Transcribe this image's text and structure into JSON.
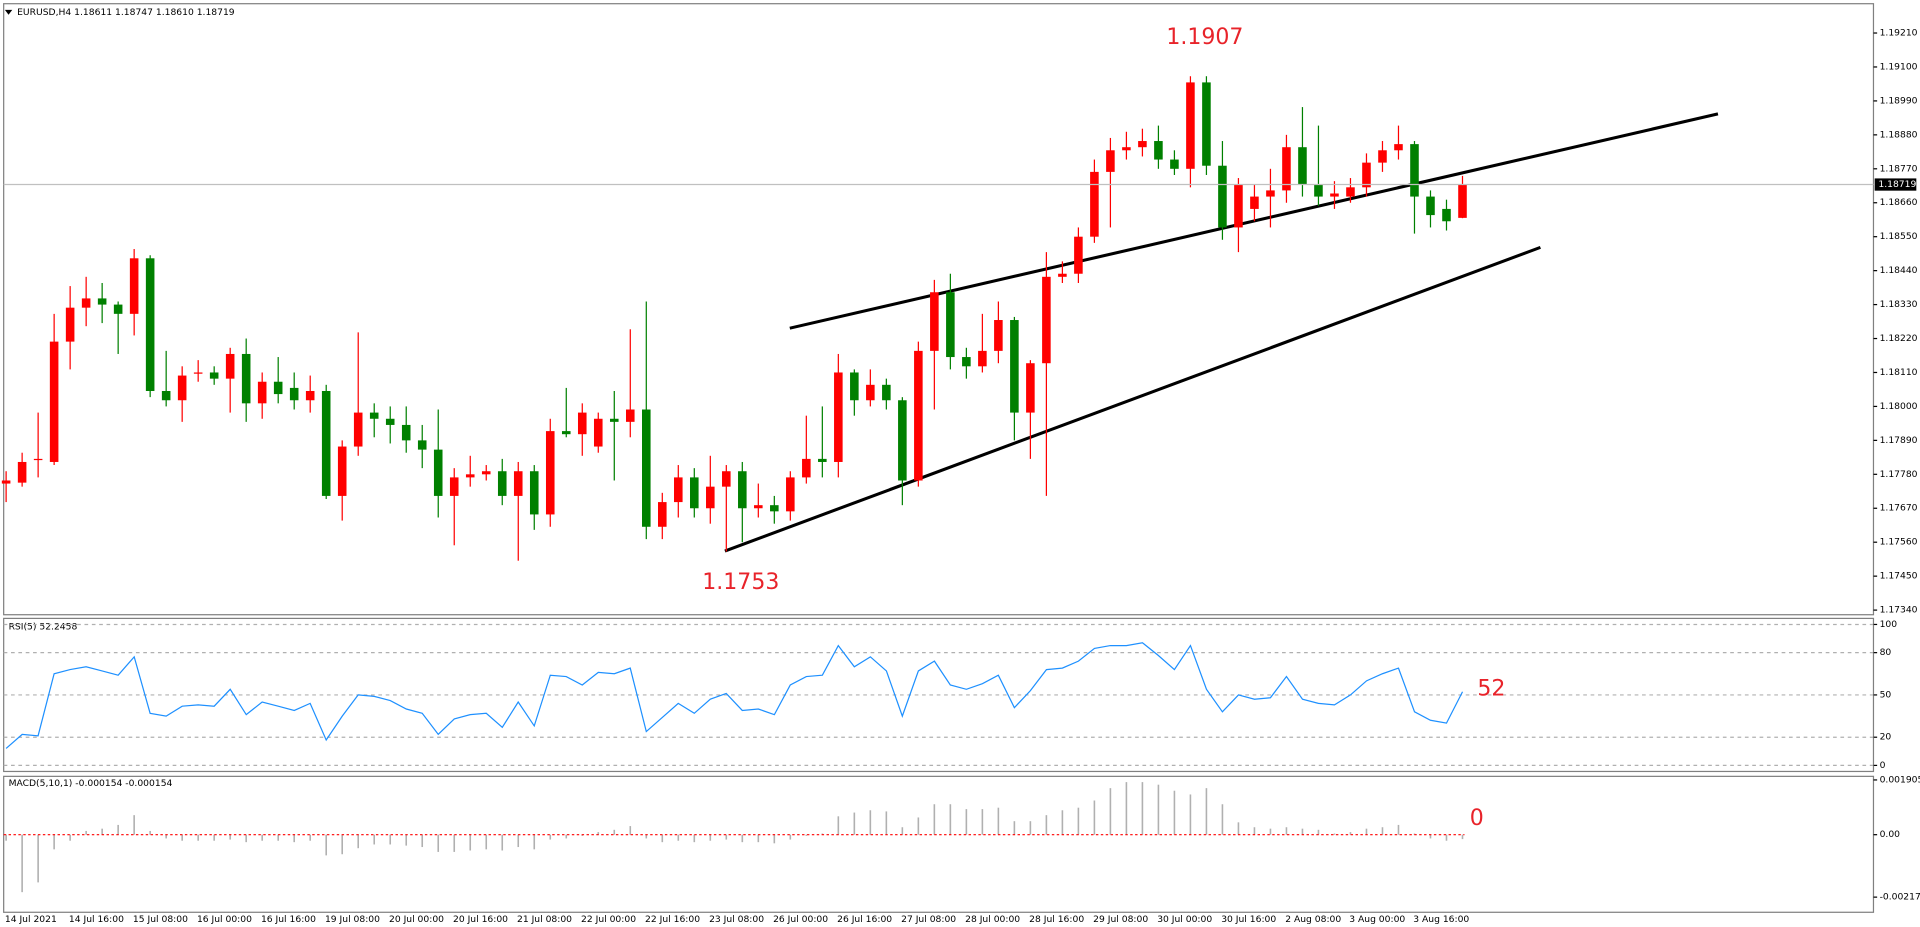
{
  "chart_data": [
    {
      "type": "candlestick",
      "title": "EURUSD,H4  1.18611 1.18747 1.18610 1.18719",
      "up_color": "#ff0000",
      "down_color": "#008000",
      "categories": [
        "14 Jul 2021",
        null,
        null,
        null,
        "14 Jul 16:00",
        null,
        null,
        null,
        "15 Jul 08:00",
        null,
        null,
        null,
        "16 Jul 00:00",
        null,
        null,
        null,
        "16 Jul 16:00",
        null,
        null,
        null,
        "19 Jul 08:00",
        null,
        null,
        null,
        "20 Jul 00:00",
        null,
        null,
        null,
        "20 Jul 16:00",
        null,
        null,
        null,
        "21 Jul 08:00",
        null,
        null,
        null,
        "22 Jul 00:00",
        null,
        null,
        null,
        "22 Jul 16:00",
        null,
        null,
        null,
        "23 Jul 08:00",
        null,
        null,
        null,
        "26 Jul 00:00",
        null,
        null,
        null,
        "26 Jul 16:00",
        null,
        null,
        null,
        "27 Jul 08:00",
        null,
        null,
        null,
        "28 Jul 00:00",
        null,
        null,
        null,
        "28 Jul 16:00",
        null,
        null,
        null,
        "29 Jul 08:00",
        null,
        null,
        null,
        "30 Jul 00:00",
        null,
        null,
        null,
        "30 Jul 16:00",
        null,
        null,
        null,
        "2 Aug 08:00",
        null,
        null,
        null,
        "3 Aug 00:00",
        null,
        null,
        null,
        "3 Aug 16:00",
        null,
        null,
        null
      ],
      "open": [
        1.1775,
        1.17753,
        1.1783,
        1.1782,
        1.1821,
        1.1832,
        1.1835,
        1.1833,
        1.183,
        1.1848,
        1.1805,
        1.1802,
        1.1811,
        1.1811,
        1.1809,
        1.1817,
        1.1801,
        1.1808,
        1.1806,
        1.1802,
        1.1805,
        1.1771,
        1.1787,
        1.1798,
        1.1796,
        1.1794,
        1.1789,
        1.1786,
        1.1771,
        1.1777,
        1.1778,
        1.1779,
        1.1771,
        1.1779,
        1.1765,
        1.1792,
        1.1791,
        1.1787,
        1.1796,
        1.1795,
        1.1799,
        1.1761,
        1.1769,
        1.1777,
        1.1767,
        1.1774,
        1.1779,
        1.1767,
        1.1768,
        1.1766,
        1.1777,
        1.1783,
        1.1782,
        1.1811,
        1.1802,
        1.1807,
        1.1802,
        1.1776,
        1.1818,
        1.1837,
        1.1816,
        1.1813,
        1.1818,
        1.1828,
        1.1798,
        1.1814,
        1.1842,
        1.1843,
        1.1855,
        1.1876,
        1.1883,
        1.1884,
        1.1886,
        1.188,
        1.1877,
        1.1905,
        1.1878,
        1.1858,
        1.1864,
        1.1868,
        1.187,
        1.1884,
        1.1872,
        1.1868,
        1.1868,
        1.1871,
        1.1879,
        1.1883,
        1.1885,
        1.1868,
        1.1864,
        1.18611
      ],
      "high": [
        1.1779,
        1.1785,
        1.1798,
        1.183,
        1.1839,
        1.1842,
        1.184,
        1.1834,
        1.1851,
        1.1849,
        1.1818,
        1.1813,
        1.1815,
        1.1813,
        1.1819,
        1.1822,
        1.1811,
        1.1816,
        1.1811,
        1.181,
        1.1807,
        1.1789,
        1.1824,
        1.1801,
        1.18,
        1.18,
        1.1794,
        1.1799,
        1.178,
        1.1784,
        1.1781,
        1.1783,
        1.1782,
        1.1781,
        1.1796,
        1.1806,
        1.1801,
        1.1798,
        1.1805,
        1.1825,
        1.1834,
        1.1772,
        1.1781,
        1.178,
        1.1784,
        1.1781,
        1.1782,
        1.1775,
        1.1771,
        1.1779,
        1.1797,
        1.18,
        1.1817,
        1.1812,
        1.1812,
        1.1809,
        1.1803,
        1.1821,
        1.1841,
        1.1843,
        1.1819,
        1.183,
        1.1834,
        1.1829,
        1.1815,
        1.185,
        1.1847,
        1.1858,
        1.188,
        1.1887,
        1.1889,
        1.189,
        1.1891,
        1.1883,
        1.1907,
        1.1907,
        1.1886,
        1.1874,
        1.1872,
        1.1877,
        1.1888,
        1.1897,
        1.1891,
        1.1873,
        1.1874,
        1.1882,
        1.1886,
        1.1891,
        1.1886,
        1.187,
        1.1867,
        1.18747
      ],
      "low": [
        1.1769,
        1.1774,
        1.1777,
        1.1781,
        1.1812,
        1.1826,
        1.1827,
        1.1817,
        1.1823,
        1.1803,
        1.18,
        1.1795,
        1.1808,
        1.1807,
        1.1798,
        1.1795,
        1.1796,
        1.1801,
        1.1799,
        1.1798,
        1.177,
        1.1763,
        1.1784,
        1.179,
        1.1788,
        1.1785,
        1.178,
        1.1764,
        1.1755,
        1.1774,
        1.1776,
        1.1768,
        1.175,
        1.176,
        1.1761,
        1.179,
        1.1784,
        1.1785,
        1.1776,
        1.179,
        1.1757,
        1.1757,
        1.1764,
        1.1764,
        1.1762,
        1.1753,
        1.1756,
        1.1764,
        1.1762,
        1.1763,
        1.1775,
        1.1777,
        1.1777,
        1.1797,
        1.18,
        1.1799,
        1.1768,
        1.1774,
        1.1799,
        1.1812,
        1.1809,
        1.1811,
        1.1814,
        1.1789,
        1.1783,
        1.1771,
        1.184,
        1.184,
        1.1853,
        1.1858,
        1.188,
        1.1881,
        1.1877,
        1.1875,
        1.1871,
        1.1875,
        1.1854,
        1.185,
        1.186,
        1.1858,
        1.1866,
        1.1868,
        1.1865,
        1.1864,
        1.1866,
        1.1868,
        1.1876,
        1.188,
        1.1856,
        1.1858,
        1.1857,
        1.1861
      ],
      "close": [
        1.1776,
        1.1782,
        1.1783,
        1.1821,
        1.1832,
        1.1835,
        1.1833,
        1.183,
        1.1848,
        1.1805,
        1.1802,
        1.181,
        1.1811,
        1.1809,
        1.1817,
        1.1801,
        1.1808,
        1.1804,
        1.1802,
        1.1805,
        1.1771,
        1.1787,
        1.1798,
        1.1796,
        1.1794,
        1.1789,
        1.1786,
        1.1771,
        1.1777,
        1.1778,
        1.1779,
        1.1771,
        1.1779,
        1.1765,
        1.1792,
        1.1791,
        1.1798,
        1.1796,
        1.1795,
        1.1799,
        1.1761,
        1.1769,
        1.1777,
        1.1767,
        1.1774,
        1.1779,
        1.1767,
        1.1768,
        1.1766,
        1.1777,
        1.1783,
        1.1782,
        1.1811,
        1.1802,
        1.1807,
        1.1802,
        1.1776,
        1.1818,
        1.1837,
        1.1816,
        1.1813,
        1.1818,
        1.1828,
        1.1798,
        1.1814,
        1.1842,
        1.1843,
        1.1855,
        1.1876,
        1.1883,
        1.1884,
        1.1886,
        1.188,
        1.1877,
        1.1905,
        1.1878,
        1.1858,
        1.1872,
        1.1868,
        1.187,
        1.1884,
        1.1872,
        1.1868,
        1.1869,
        1.1871,
        1.1879,
        1.1883,
        1.1885,
        1.1868,
        1.1862,
        1.186,
        1.18719
      ],
      "ylim": [
        1.17325,
        1.19305
      ],
      "yticks": [
        {
          "value": 1.1921,
          "label": "1.19210"
        },
        {
          "value": 1.191,
          "label": "1.19100"
        },
        {
          "value": 1.1899,
          "label": "1.18990"
        },
        {
          "value": 1.1888,
          "label": "1.18880"
        },
        {
          "value": 1.1877,
          "label": "1.18770"
        },
        {
          "value": 1.1866,
          "label": "1.18660"
        },
        {
          "value": 1.1855,
          "label": "1.18550"
        },
        {
          "value": 1.1844,
          "label": "1.18440"
        },
        {
          "value": 1.1833,
          "label": "1.18330"
        },
        {
          "value": 1.1822,
          "label": "1.18220"
        },
        {
          "value": 1.1811,
          "label": "1.18110"
        },
        {
          "value": 1.18,
          "label": "1.18000"
        },
        {
          "value": 1.1789,
          "label": "1.17890"
        },
        {
          "value": 1.1778,
          "label": "1.17780"
        },
        {
          "value": 1.1767,
          "label": "1.17670"
        },
        {
          "value": 1.1756,
          "label": "1.17560"
        },
        {
          "value": 1.1745,
          "label": "1.17450"
        },
        {
          "value": 1.1734,
          "label": "1.17340"
        }
      ],
      "last_price": {
        "value": 1.18719,
        "label": "1.18719"
      },
      "annotations": [
        "1.1907",
        "1.1753"
      ]
    },
    {
      "type": "line",
      "title": "RSI(5) 52.2458",
      "color": "#1e90ff",
      "values": [
        12,
        22,
        21,
        65,
        68,
        70,
        67,
        64,
        77,
        37,
        35,
        42,
        43,
        42,
        54,
        36,
        45,
        42,
        39,
        44,
        18,
        35,
        50,
        49,
        46,
        40,
        37,
        22,
        33,
        36,
        37,
        27,
        45,
        28,
        64,
        63,
        57,
        66,
        65,
        69,
        24,
        34,
        44,
        37,
        47,
        51,
        39,
        40,
        36,
        57,
        63,
        64,
        85,
        70,
        77,
        67,
        35,
        67,
        74,
        57,
        54,
        58,
        64,
        41,
        53,
        68,
        69,
        74,
        83,
        85,
        85,
        87,
        78,
        68,
        85,
        54,
        38,
        50,
        47,
        48,
        63,
        47,
        44,
        43,
        50,
        60,
        65,
        69,
        38,
        32,
        30,
        52.2458
      ],
      "ylim": [
        -4.3,
        104.3
      ],
      "yticks": [
        0,
        20,
        50,
        80,
        100
      ],
      "grid": true,
      "annotations": [
        "52"
      ]
    },
    {
      "type": "bar",
      "title": "MACD(5,10,1) -0.000154 -0.000154",
      "color": "#b0b0b0",
      "zero_line_color": "#ff0000",
      "values": [
        -0.00021,
        -0.002,
        -0.00166,
        -0.00051,
        -0.00021,
        0.00013,
        0.00021,
        0.00034,
        0.00068,
        0.00013,
        -0.00013,
        -0.00021,
        -0.00021,
        -0.00021,
        -0.00017,
        -0.00026,
        -0.00021,
        -0.00021,
        -0.00026,
        -0.00021,
        -0.00072,
        -0.00068,
        -0.00047,
        -0.00034,
        -0.00034,
        -0.00038,
        -0.00043,
        -0.0006,
        -0.0006,
        -0.00055,
        -0.00051,
        -0.00055,
        -0.00043,
        -0.00051,
        -0.00017,
        -0.00013,
        -4e-05,
        9e-05,
        0.00017,
        0.0003,
        -0.00013,
        -0.00026,
        -0.00021,
        -0.00026,
        -0.00021,
        -0.00017,
        -0.00026,
        -0.00026,
        -0.0003,
        -0.00017,
        -4e-05,
        4e-05,
        0.00064,
        0.00077,
        0.00085,
        0.00081,
        0.00026,
        0.0006,
        0.00106,
        0.00106,
        0.00089,
        0.00089,
        0.00094,
        0.00047,
        0.00047,
        0.00068,
        0.00085,
        0.00094,
        0.00119,
        0.00162,
        0.00183,
        0.00183,
        0.00174,
        0.00153,
        0.0014,
        0.00162,
        0.00106,
        0.00043,
        0.00026,
        0.00021,
        0.00026,
        0.00021,
        0.00017,
        4e-05,
        9e-05,
        0.00021,
        0.00026,
        0.00034,
        4e-05,
        -0.00013,
        -0.00021,
        -0.000154
      ],
      "ylim": [
        -0.0027,
        0.00203
      ],
      "yticks": [
        0.001905,
        {
          "value": 0,
          "label": "0.00"
        },
        -0.002173
      ],
      "annotations": [
        "0"
      ]
    }
  ]
}
